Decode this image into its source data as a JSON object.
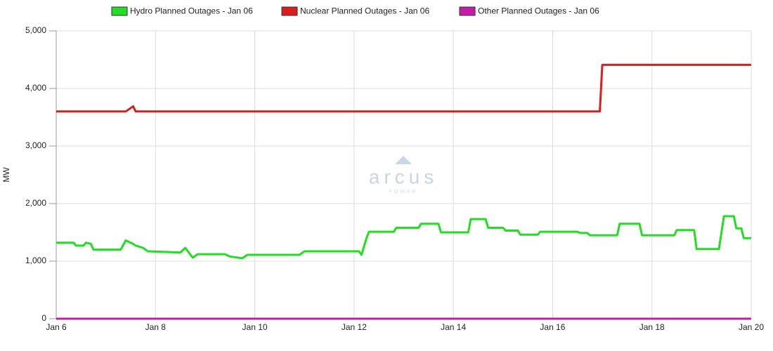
{
  "chart_data": {
    "type": "line",
    "y_label": "MW",
    "watermark": "arcus",
    "watermark_sub": "POWER",
    "x": [
      6,
      6.35,
      6.4,
      6.55,
      6.6,
      6.7,
      6.75,
      7.3,
      7.4,
      7.55,
      7.6,
      7.75,
      7.85,
      8.5,
      8.6,
      8.75,
      8.85,
      9.4,
      9.5,
      9.75,
      9.85,
      10.9,
      11.0,
      12.1,
      12.15,
      12.25,
      12.3,
      12.8,
      12.85,
      13.3,
      13.35,
      13.7,
      13.75,
      14.3,
      14.35,
      14.65,
      14.7,
      15.0,
      15.05,
      15.3,
      15.35,
      15.7,
      15.75,
      16.5,
      16.55,
      16.7,
      16.75,
      16.95,
      17.0,
      17.3,
      17.35,
      17.75,
      17.8,
      18.45,
      18.5,
      18.85,
      18.9,
      19.35,
      19.45,
      19.65,
      19.7,
      19.8,
      19.85,
      20
    ],
    "series": [
      {
        "name": "Hydro Planned Outages - Jan 06",
        "color": "#22dd22",
        "values": [
          1320,
          1320,
          1270,
          1270,
          1320,
          1300,
          1200,
          1200,
          1360,
          1300,
          1270,
          1230,
          1170,
          1150,
          1230,
          1060,
          1120,
          1120,
          1080,
          1050,
          1110,
          1110,
          1170,
          1170,
          1110,
          1400,
          1510,
          1510,
          1580,
          1580,
          1650,
          1650,
          1500,
          1500,
          1730,
          1730,
          1580,
          1580,
          1530,
          1530,
          1460,
          1460,
          1510,
          1510,
          1490,
          1490,
          1450,
          1450,
          1450,
          1450,
          1650,
          1650,
          1450,
          1450,
          1540,
          1540,
          1210,
          1210,
          1780,
          1780,
          1570,
          1570,
          1400,
          1400
        ]
      },
      {
        "name": "Nuclear Planned Outages - Jan 06",
        "color": "#dd1c1c",
        "values": [
          3600,
          3600,
          3600,
          3600,
          3600,
          3600,
          3600,
          3600,
          3600,
          3690,
          3600,
          3600,
          3600,
          3600,
          3600,
          3600,
          3600,
          3600,
          3600,
          3600,
          3600,
          3600,
          3600,
          3600,
          3600,
          3600,
          3600,
          3600,
          3600,
          3600,
          3600,
          3600,
          3600,
          3600,
          3600,
          3600,
          3600,
          3600,
          3600,
          3600,
          3600,
          3600,
          3600,
          3600,
          3600,
          3600,
          3600,
          3600,
          4410,
          4410,
          4410,
          4410,
          4410,
          4410,
          4410,
          4410,
          4410,
          4410,
          4410,
          4410,
          4410,
          4410,
          4410,
          4410
        ]
      },
      {
        "name": "Other Planned Outages - Jan 06",
        "color": "#c41ca8",
        "values": [
          0,
          0,
          0,
          0,
          0,
          0,
          0,
          0,
          0,
          0,
          0,
          0,
          0,
          0,
          0,
          0,
          0,
          0,
          0,
          0,
          0,
          0,
          0,
          0,
          0,
          0,
          0,
          0,
          0,
          0,
          0,
          0,
          0,
          0,
          0,
          0,
          0,
          0,
          0,
          0,
          0,
          0,
          0,
          0,
          0,
          0,
          0,
          0,
          0,
          0,
          0,
          0,
          0,
          0,
          0,
          0,
          0,
          0,
          0,
          0,
          0,
          0,
          0,
          0
        ]
      }
    ],
    "xlim": [
      6,
      20
    ],
    "xticks": [
      {
        "value": 6,
        "label": "Jan 6"
      },
      {
        "value": 8,
        "label": "Jan 8"
      },
      {
        "value": 10,
        "label": "Jan 10"
      },
      {
        "value": 12,
        "label": "Jan 12"
      },
      {
        "value": 14,
        "label": "Jan 14"
      },
      {
        "value": 16,
        "label": "Jan 16"
      },
      {
        "value": 18,
        "label": "Jan 18"
      },
      {
        "value": 20,
        "label": "Jan 20"
      }
    ],
    "ylim": [
      0,
      5000
    ],
    "yticks": [
      0,
      {
        "value": 1000,
        "label": "1,000"
      },
      {
        "value": 2000,
        "label": "2,000"
      },
      {
        "value": 3000,
        "label": "3,000"
      },
      {
        "value": 4000,
        "label": "4,000"
      },
      {
        "value": 5000,
        "label": "5,000"
      }
    ],
    "grid": true,
    "legend": "top"
  }
}
